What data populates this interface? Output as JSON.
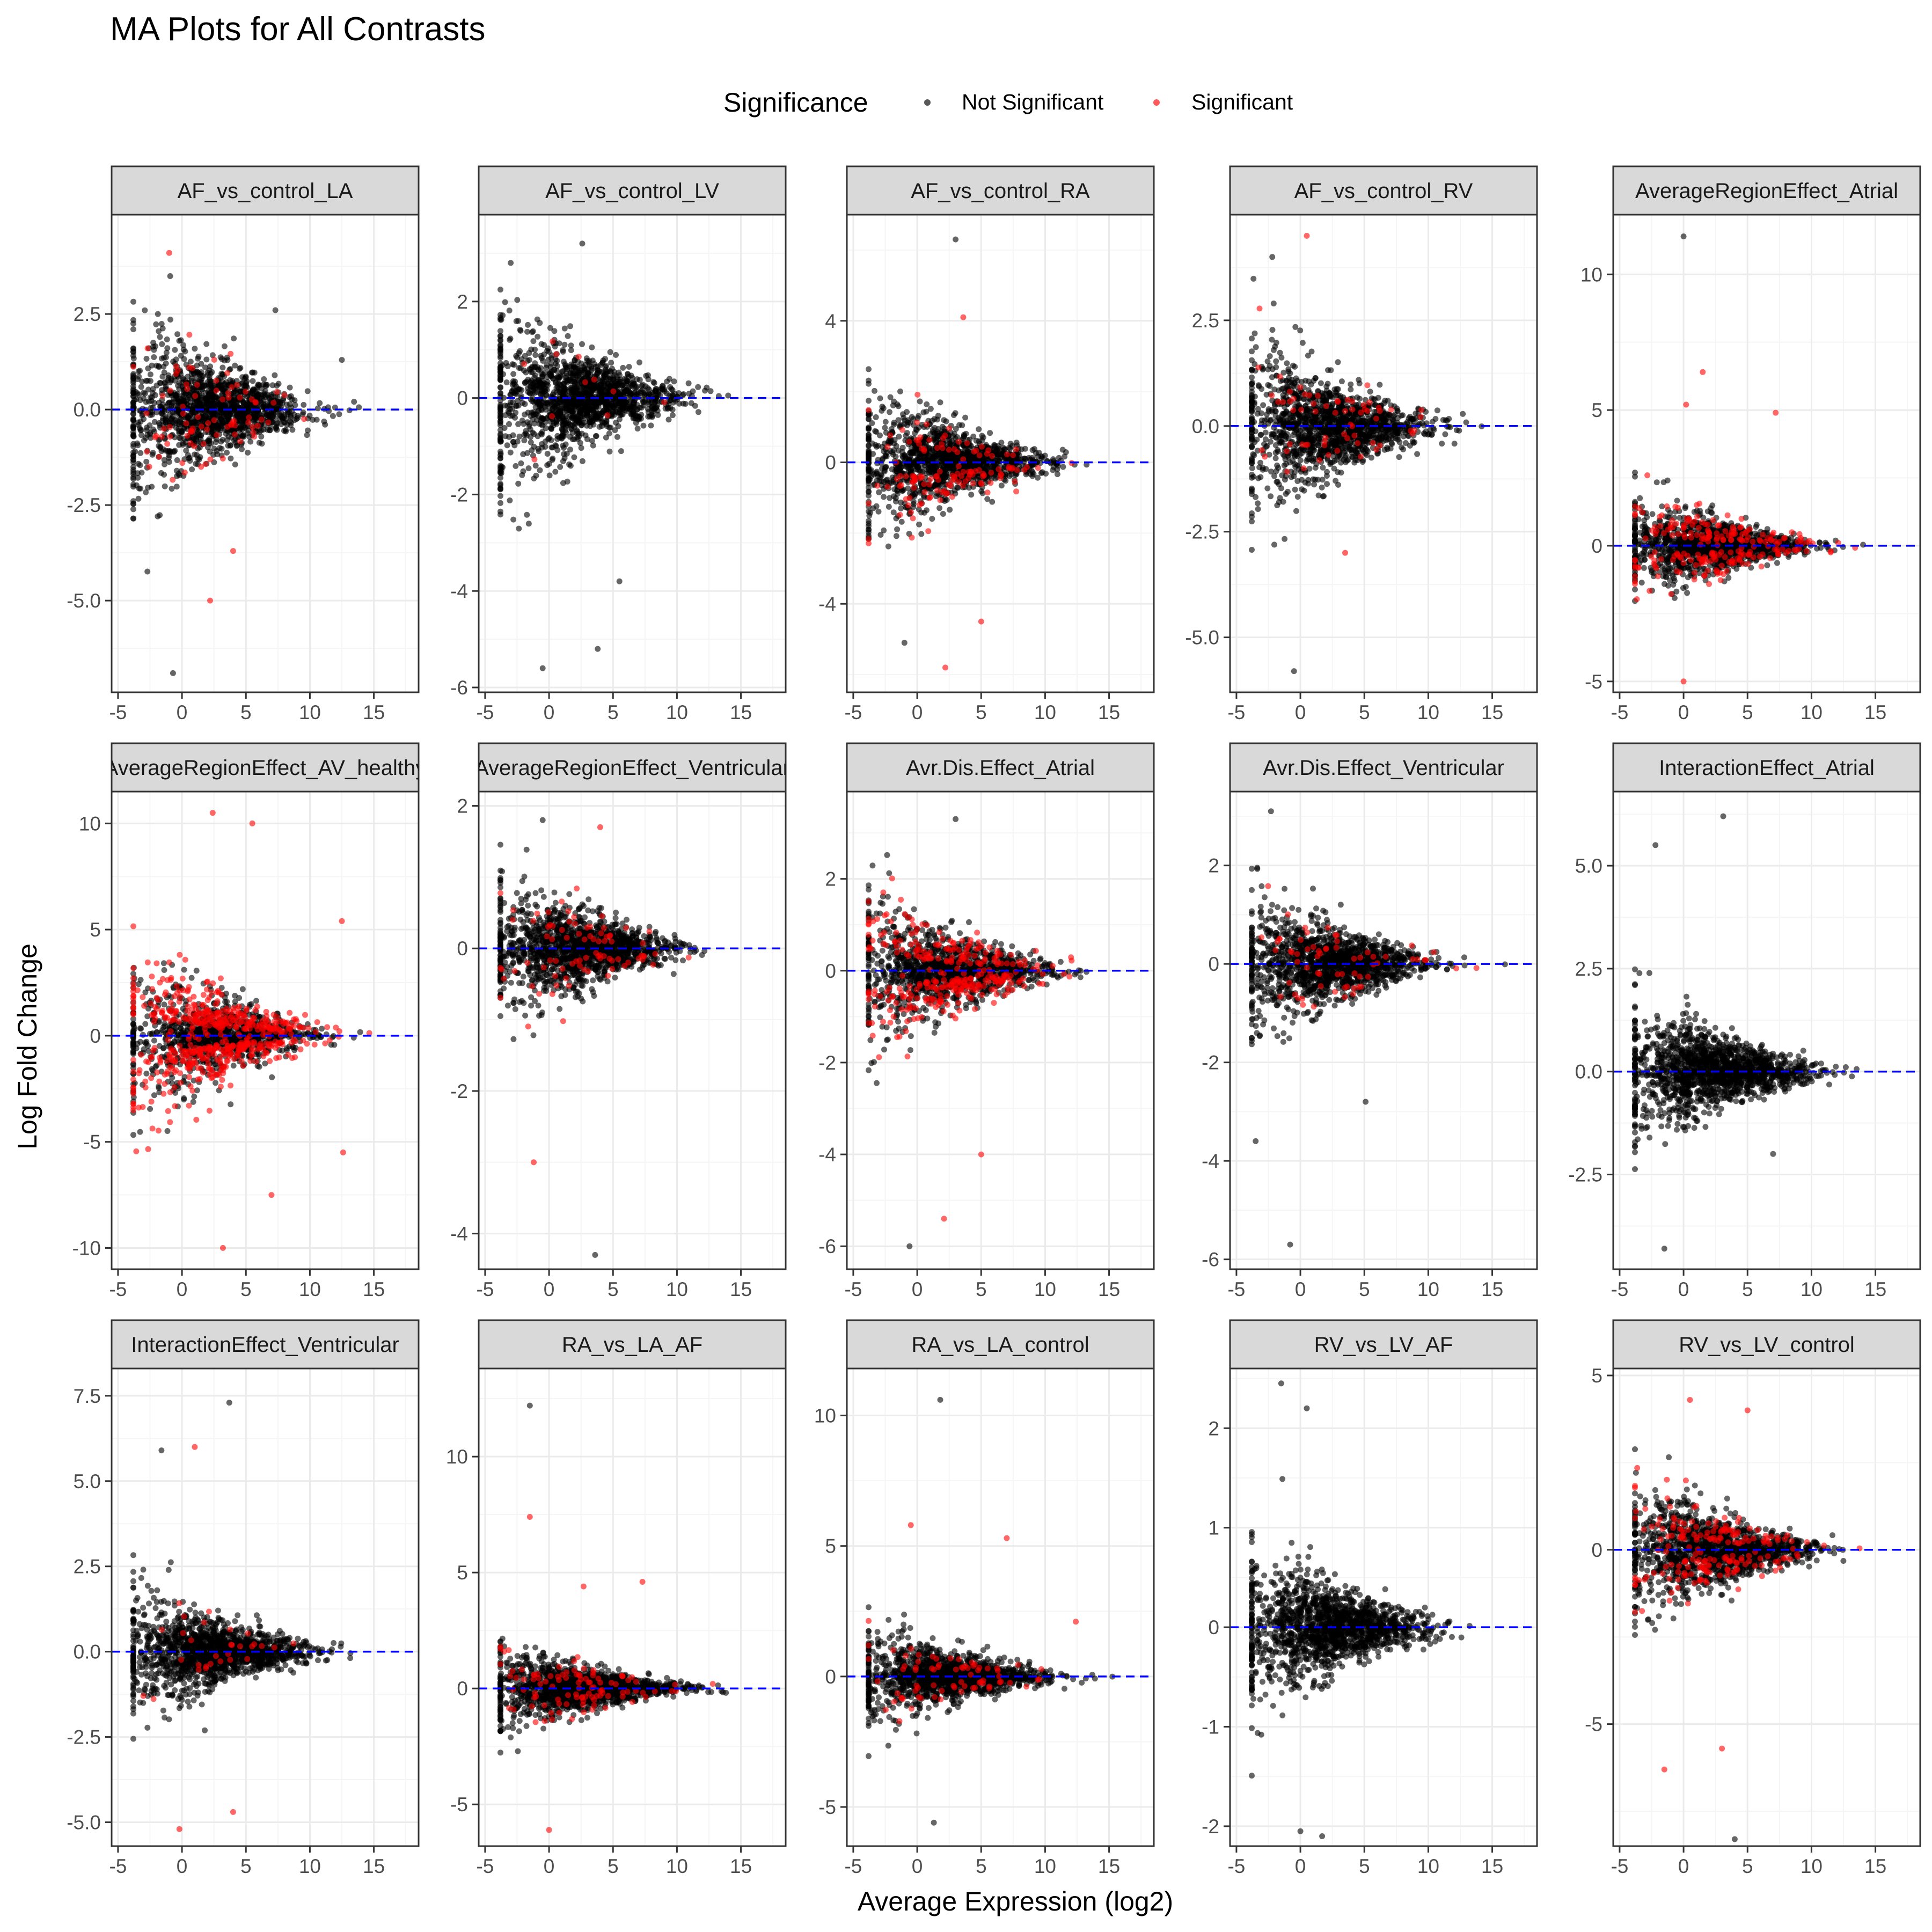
{
  "title": "MA Plots for All Contrasts",
  "legend": {
    "title": "Significance",
    "items": [
      {
        "label": "Not Significant",
        "color": "#000000"
      },
      {
        "label": "Significant",
        "color": "#ff0000"
      }
    ]
  },
  "colors": {
    "strip_fill": "#d9d9d9",
    "grid_major": "#ebebeb",
    "grid_minor": "#f5f5f5",
    "hline": "#0000ff",
    "panel_border": "#333333"
  },
  "chart_data": {
    "type": "scatter",
    "title": "MA Plots for All Contrasts",
    "xlabel": "Average Expression (log2)",
    "ylabel": "Log Fold Change",
    "legend_position": "top",
    "grid": true,
    "reference_line": {
      "y": 0,
      "style": "dashed",
      "color": "#0000ff"
    },
    "xlim": [
      -5.5,
      18.5
    ],
    "xticks": [
      -5,
      0,
      5,
      10,
      15
    ],
    "facets": [
      {
        "label": "AF_vs_control_LA",
        "ylim": [
          -7.4,
          5.1
        ],
        "yticks": [
          -5.0,
          -2.5,
          0.0,
          2.5
        ],
        "tick_decimals": 1,
        "spread": 1.3,
        "sig_frac": 0.08,
        "sig_bias": 0.0,
        "outliers": [
          {
            "x": -1,
            "y": 4.1,
            "sig": true
          },
          {
            "x": -0.7,
            "y": -6.9,
            "sig": false
          },
          {
            "x": 2.2,
            "y": -5.0,
            "sig": true
          },
          {
            "x": 4,
            "y": -3.7,
            "sig": true
          },
          {
            "x": 7.3,
            "y": 2.6,
            "sig": false
          },
          {
            "x": 12.5,
            "y": 1.3,
            "sig": false
          }
        ]
      },
      {
        "label": "AF_vs_control_LV",
        "ylim": [
          -6.1,
          3.8
        ],
        "yticks": [
          -6,
          -4,
          -2,
          0,
          2
        ],
        "tick_decimals": 0,
        "spread": 1.0,
        "sig_frac": 0.015,
        "sig_bias": 0.0,
        "outliers": [
          {
            "x": -3,
            "y": 2.8,
            "sig": false
          },
          {
            "x": -0.5,
            "y": -5.6,
            "sig": false
          },
          {
            "x": 3.8,
            "y": -5.2,
            "sig": false
          },
          {
            "x": 2.6,
            "y": 3.2,
            "sig": false
          },
          {
            "x": 5.5,
            "y": -3.8,
            "sig": false
          }
        ]
      },
      {
        "label": "AF_vs_control_RA",
        "ylim": [
          -6.5,
          7.0
        ],
        "yticks": [
          -4,
          0,
          4
        ],
        "tick_decimals": 0,
        "spread": 1.1,
        "sig_frac": 0.15,
        "sig_bias": -0.4,
        "outliers": [
          {
            "x": 3,
            "y": 6.3,
            "sig": false
          },
          {
            "x": 2.2,
            "y": -5.8,
            "sig": true
          },
          {
            "x": -1,
            "y": -5.1,
            "sig": false
          },
          {
            "x": 3.6,
            "y": 4.1,
            "sig": true
          },
          {
            "x": 5,
            "y": -4.5,
            "sig": true
          }
        ]
      },
      {
        "label": "AF_vs_control_RV",
        "ylim": [
          -6.3,
          5.0
        ],
        "yticks": [
          -5.0,
          -2.5,
          0.0,
          2.5
        ],
        "tick_decimals": 1,
        "spread": 1.1,
        "sig_frac": 0.06,
        "sig_bias": 0.0,
        "outliers": [
          {
            "x": 0.5,
            "y": 4.5,
            "sig": true
          },
          {
            "x": -2.2,
            "y": 4.0,
            "sig": false
          },
          {
            "x": -0.5,
            "y": -5.8,
            "sig": false
          },
          {
            "x": 3.5,
            "y": -3.0,
            "sig": true
          }
        ]
      },
      {
        "label": "AverageRegionEffect_Atrial",
        "ylim": [
          -5.4,
          12.2
        ],
        "yticks": [
          -5,
          0,
          5,
          10
        ],
        "tick_decimals": 0,
        "spread": 1.0,
        "sig_frac": 0.22,
        "sig_bias": 0.0,
        "outliers": [
          {
            "x": 0,
            "y": 11.4,
            "sig": false
          },
          {
            "x": 1.5,
            "y": 6.4,
            "sig": true
          },
          {
            "x": 7.2,
            "y": 4.9,
            "sig": true
          },
          {
            "x": 0,
            "y": -5.0,
            "sig": true
          },
          {
            "x": 0.2,
            "y": 5.2,
            "sig": true
          }
        ]
      },
      {
        "label": "AverageRegionEffect_AV_healthy",
        "ylim": [
          -11.0,
          11.5
        ],
        "yticks": [
          -10,
          -5,
          0,
          5,
          10
        ],
        "tick_decimals": 0,
        "spread": 2.1,
        "sig_frac": 0.55,
        "sig_bias": 0.0,
        "outliers": [
          {
            "x": 2.4,
            "y": 10.5,
            "sig": true
          },
          {
            "x": 5.5,
            "y": 10.0,
            "sig": true
          },
          {
            "x": 3.2,
            "y": -10.0,
            "sig": true
          },
          {
            "x": 7,
            "y": -7.5,
            "sig": true
          },
          {
            "x": 12.5,
            "y": 5.4,
            "sig": true
          },
          {
            "x": 12.6,
            "y": -5.5,
            "sig": true
          }
        ]
      },
      {
        "label": "AverageRegionEffect_Ventricular",
        "ylim": [
          -4.5,
          2.2
        ],
        "yticks": [
          -4,
          -2,
          0,
          2
        ],
        "tick_decimals": 0,
        "spread": 0.55,
        "sig_frac": 0.07,
        "sig_bias": 0.0,
        "outliers": [
          {
            "x": 3.6,
            "y": -4.3,
            "sig": false
          },
          {
            "x": -1.2,
            "y": -3.0,
            "sig": true
          },
          {
            "x": 4.0,
            "y": 1.7,
            "sig": true
          },
          {
            "x": -0.5,
            "y": 1.8,
            "sig": false
          }
        ]
      },
      {
        "label": "Avr.Dis.Effect_Atrial",
        "ylim": [
          -6.5,
          3.9
        ],
        "yticks": [
          -6,
          -4,
          -2,
          0,
          2
        ],
        "tick_decimals": 0,
        "spread": 0.9,
        "sig_frac": 0.3,
        "sig_bias": 0.0,
        "outliers": [
          {
            "x": 3,
            "y": 3.3,
            "sig": false
          },
          {
            "x": -0.6,
            "y": -6.0,
            "sig": false
          },
          {
            "x": 2.1,
            "y": -5.4,
            "sig": true
          },
          {
            "x": 5,
            "y": -4.0,
            "sig": true
          }
        ]
      },
      {
        "label": "Avr.Dis.Effect_Ventricular",
        "ylim": [
          -6.2,
          3.5
        ],
        "yticks": [
          -6,
          -4,
          -2,
          0,
          2
        ],
        "tick_decimals": 0,
        "spread": 0.75,
        "sig_frac": 0.06,
        "sig_bias": 0.0,
        "outliers": [
          {
            "x": -2.3,
            "y": 3.1,
            "sig": false
          },
          {
            "x": -0.8,
            "y": -5.7,
            "sig": false
          },
          {
            "x": 5.1,
            "y": -2.8,
            "sig": false
          },
          {
            "x": -3.5,
            "y": -3.6,
            "sig": false
          }
        ]
      },
      {
        "label": "InteractionEffect_Atrial",
        "ylim": [
          -4.8,
          6.8
        ],
        "yticks": [
          -2.5,
          0.0,
          2.5,
          5.0
        ],
        "tick_decimals": 1,
        "spread": 0.9,
        "sig_frac": 0.0,
        "sig_bias": 0.0,
        "outliers": [
          {
            "x": 3.1,
            "y": 6.2,
            "sig": false
          },
          {
            "x": -2.2,
            "y": 5.5,
            "sig": false
          },
          {
            "x": -1.5,
            "y": -4.3,
            "sig": false
          },
          {
            "x": 7,
            "y": -2.0,
            "sig": false
          }
        ]
      },
      {
        "label": "InteractionEffect_Ventricular",
        "ylim": [
          -5.7,
          8.3
        ],
        "yticks": [
          -5.0,
          -2.5,
          0.0,
          2.5,
          5.0,
          7.5
        ],
        "tick_decimals": 1,
        "spread": 1.0,
        "sig_frac": 0.03,
        "sig_bias": 0.0,
        "outliers": [
          {
            "x": 3.7,
            "y": 7.3,
            "sig": false
          },
          {
            "x": 1,
            "y": 6.0,
            "sig": true
          },
          {
            "x": -1.6,
            "y": 5.9,
            "sig": false
          },
          {
            "x": -0.2,
            "y": -5.2,
            "sig": true
          },
          {
            "x": 4,
            "y": -4.7,
            "sig": true
          }
        ]
      },
      {
        "label": "RA_vs_LA_AF",
        "ylim": [
          -6.8,
          13.8
        ],
        "yticks": [
          -5,
          0,
          5,
          10
        ],
        "tick_decimals": 0,
        "spread": 1.0,
        "sig_frac": 0.08,
        "sig_bias": 0.0,
        "outliers": [
          {
            "x": -1.5,
            "y": 12.2,
            "sig": false
          },
          {
            "x": -1.5,
            "y": 7.4,
            "sig": true
          },
          {
            "x": 7.3,
            "y": 4.6,
            "sig": true
          },
          {
            "x": 0,
            "y": -6.1,
            "sig": true
          },
          {
            "x": 2.7,
            "y": 4.4,
            "sig": true
          }
        ]
      },
      {
        "label": "RA_vs_LA_control",
        "ylim": [
          -6.5,
          11.8
        ],
        "yticks": [
          -5,
          0,
          5,
          10
        ],
        "tick_decimals": 0,
        "spread": 1.0,
        "sig_frac": 0.08,
        "sig_bias": 0.0,
        "outliers": [
          {
            "x": 1.8,
            "y": 10.6,
            "sig": false
          },
          {
            "x": -0.5,
            "y": 5.8,
            "sig": true
          },
          {
            "x": 7,
            "y": 5.3,
            "sig": true
          },
          {
            "x": 1.3,
            "y": -5.6,
            "sig": false
          },
          {
            "x": 12.4,
            "y": 2.1,
            "sig": true
          }
        ]
      },
      {
        "label": "RV_vs_LV_AF",
        "ylim": [
          -2.2,
          2.6
        ],
        "yticks": [
          -2,
          -1,
          0,
          1,
          2
        ],
        "tick_decimals": 0,
        "spread": 0.45,
        "sig_frac": 0.0,
        "sig_bias": 0.0,
        "outliers": [
          {
            "x": -1.5,
            "y": 2.45,
            "sig": false
          },
          {
            "x": 0.5,
            "y": 2.2,
            "sig": false
          },
          {
            "x": 1.7,
            "y": -2.1,
            "sig": false
          },
          {
            "x": 0,
            "y": -2.05,
            "sig": false
          }
        ]
      },
      {
        "label": "RV_vs_LV_control",
        "ylim": [
          -8.5,
          5.2
        ],
        "yticks": [
          -5,
          0,
          5
        ],
        "tick_decimals": 0,
        "spread": 1.1,
        "sig_frac": 0.22,
        "sig_bias": 0.0,
        "outliers": [
          {
            "x": 4,
            "y": -8.3,
            "sig": false
          },
          {
            "x": -1.5,
            "y": -6.3,
            "sig": true
          },
          {
            "x": 0.5,
            "y": 4.3,
            "sig": true
          },
          {
            "x": 3,
            "y": -5.7,
            "sig": true
          },
          {
            "x": 5,
            "y": 4.0,
            "sig": true
          }
        ]
      }
    ]
  }
}
